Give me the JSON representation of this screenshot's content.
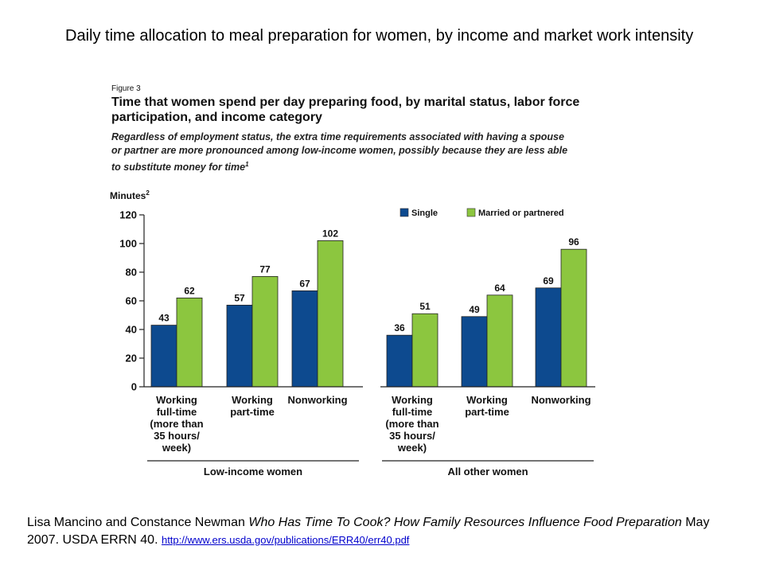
{
  "slide": {
    "title": "Daily time allocation to meal preparation for women, by income and market work intensity"
  },
  "figure": {
    "label": "Figure 3",
    "title": "Time that women spend per day preparing food, by marital status, labor force participation, and income category",
    "subtitle": "Regardless of employment status, the extra time requirements associated with having a spouse or partner are more pronounced among low-income women, possibly because they are less able to substitute money for time",
    "subtitle_superscript": "1"
  },
  "chart_data": {
    "type": "bar",
    "ylabel": "Minutes",
    "ylabel_superscript": "2",
    "ylim": [
      0,
      120
    ],
    "yticks": [
      0,
      20,
      40,
      60,
      80,
      100,
      120
    ],
    "legend_position": "top-right",
    "categories": [
      [
        "Working",
        "full-time",
        "(more than",
        "35 hours/",
        "week)"
      ],
      [
        "Working",
        "part-time"
      ],
      [
        "Nonworking"
      ],
      [
        "Working",
        "full-time",
        "(more than",
        "35 hours/",
        "week)"
      ],
      [
        "Working",
        "part-time"
      ],
      [
        "Nonworking"
      ]
    ],
    "groups": [
      {
        "label": "Low-income women",
        "categories": [
          0,
          1,
          2
        ]
      },
      {
        "label": "All other women",
        "categories": [
          3,
          4,
          5
        ]
      }
    ],
    "series": [
      {
        "name": "Single",
        "color": "#0d4a8f",
        "values": [
          43,
          57,
          67,
          36,
          49,
          69
        ]
      },
      {
        "name": "Married or partnered",
        "color": "#8cc63f",
        "values": [
          62,
          77,
          102,
          51,
          64,
          96
        ]
      }
    ]
  },
  "citation": {
    "authors": "Lisa Mancino and Constance Newman ",
    "title": "Who Has Time To Cook? How Family Resources Influence Food Preparation",
    "details": " May 2007.  USDA ERRN 40. ",
    "url": "http://www.ers.usda.gov/publications/ERR40/err40.pdf"
  }
}
